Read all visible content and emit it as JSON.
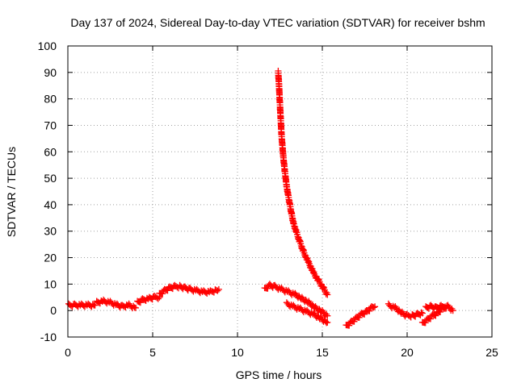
{
  "chart_data": {
    "type": "scatter",
    "title": "Day 137 of 2024, Sidereal Day-to-day VTEC variation (SDTVAR) for receiver bshm",
    "xlabel": "GPS time / hours",
    "ylabel": "SDTVAR / TECUs",
    "xlim": [
      0,
      25
    ],
    "ylim": [
      -10,
      100
    ],
    "xticks": [
      "0",
      "5",
      "10",
      "15",
      "20",
      "25"
    ],
    "yticks": [
      "-10",
      "0",
      "10",
      "20",
      "30",
      "40",
      "50",
      "60",
      "70",
      "80",
      "90",
      "100"
    ],
    "grid": true,
    "marker": "+",
    "color": "#ff0000",
    "series": [
      {
        "name": "SDTVAR",
        "segments": [
          {
            "x": [
              0.05,
              0.4,
              0.8,
              1.2,
              1.6
            ],
            "y": [
              2,
              2,
              2,
              2,
              2
            ]
          },
          {
            "x": [
              1.7,
              2.1,
              2.5,
              2.9,
              3.2,
              3.6,
              4.0
            ],
            "y": [
              3,
              3.5,
              3,
              2,
              1.5,
              2,
              1
            ]
          },
          {
            "x": [
              4.1,
              4.4,
              4.8,
              5.1,
              5.4
            ],
            "y": [
              3,
              4,
              4.5,
              5,
              5
            ]
          },
          {
            "x": [
              5.4,
              5.7,
              6.0,
              6.3,
              6.6,
              6.9,
              7.2,
              7.6,
              8.0,
              8.4,
              8.9
            ],
            "y": [
              6,
              7.5,
              8.5,
              9,
              9,
              8.5,
              8,
              7.5,
              7,
              7,
              8
            ]
          },
          {
            "x": [
              11.6,
              11.9,
              12.2,
              12.6,
              13.0,
              13.4,
              13.8,
              14.2,
              14.6,
              15.0,
              15.3
            ],
            "y": [
              8,
              9.5,
              9,
              8,
              7,
              6,
              4.5,
              3,
              1,
              -0.5,
              -2
            ]
          },
          {
            "x": [
              12.4,
              12.45,
              12.5,
              12.55,
              12.6,
              12.7,
              12.8,
              12.9,
              13.0,
              13.1,
              13.2,
              13.3,
              13.5,
              13.7,
              13.9,
              14.2,
              14.5,
              14.8,
              15.1,
              15.3
            ],
            "y": [
              90,
              85,
              78,
              72,
              66,
              58,
              52,
              47,
              43,
              39.5,
              36,
              33,
              29,
              25.5,
              22,
              18,
              14,
              11,
              8,
              6
            ]
          },
          {
            "x": [
              12.9,
              13.3,
              13.7,
              14.1,
              14.5,
              14.9,
              15.3
            ],
            "y": [
              2.5,
              1.5,
              0.5,
              -0.5,
              -1.5,
              -3,
              -4.5
            ]
          },
          {
            "x": [
              16.4,
              16.7,
              17.0,
              17.3,
              17.6,
              17.9,
              18.1
            ],
            "y": [
              -6,
              -4.5,
              -3,
              -1.5,
              -0.5,
              1,
              1.5
            ]
          },
          {
            "x": [
              18.9,
              19.3,
              19.7,
              20.0,
              20.3,
              20.6,
              20.9
            ],
            "y": [
              2,
              1,
              -1,
              -2,
              -2,
              -1.5,
              -1
            ]
          },
          {
            "x": [
              20.9,
              21.2,
              21.5,
              21.8,
              22.1,
              22.4,
              22.7
            ],
            "y": [
              -5,
              -3.5,
              -2,
              -1,
              1,
              1.5,
              0
            ]
          },
          {
            "x": [
              21.1,
              21.4,
              21.7,
              22.0,
              22.3
            ],
            "y": [
              1,
              1.5,
              1,
              1.5,
              1
            ]
          }
        ]
      }
    ]
  }
}
